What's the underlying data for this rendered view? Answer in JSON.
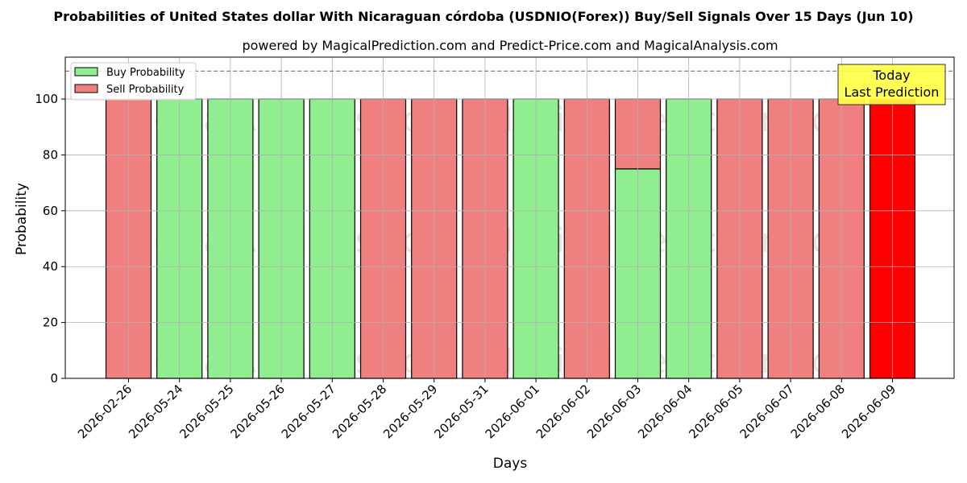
{
  "chart_data": {
    "type": "bar",
    "stacked": true,
    "title": "Probabilities of United States dollar With Nicaraguan córdoba (USDNIO(Forex)) Buy/Sell Signals Over 15 Days (Jun 10)",
    "subtitle": "powered by MagicalPrediction.com and Predict-Price.com and MagicalAnalysis.com",
    "xlabel": "Days",
    "ylabel": "Probability",
    "ylim": [
      0,
      115
    ],
    "yticks": [
      0,
      20,
      40,
      60,
      80,
      100
    ],
    "grid": true,
    "legend_position": "top-left",
    "reference_line": 110,
    "categories": [
      "2026-02-26",
      "2026-05-24",
      "2026-05-25",
      "2026-05-26",
      "2026-05-27",
      "2026-05-28",
      "2026-05-29",
      "2026-05-31",
      "2026-06-01",
      "2026-06-02",
      "2026-06-03",
      "2026-06-04",
      "2026-06-05",
      "2026-06-07",
      "2026-06-08",
      "2026-06-09"
    ],
    "series": [
      {
        "name": "Buy Probability",
        "color": "#90ee90",
        "values": [
          0,
          100,
          100,
          100,
          100,
          0,
          0,
          0,
          100,
          0,
          75,
          100,
          0,
          0,
          0,
          0
        ]
      },
      {
        "name": "Sell Probability",
        "color": "#f08080",
        "values": [
          100,
          0,
          0,
          0,
          0,
          100,
          100,
          100,
          0,
          100,
          25,
          0,
          100,
          100,
          100,
          100
        ]
      }
    ],
    "highlight": {
      "index": 15,
      "color": "#ff0000"
    },
    "annotation": {
      "line1": "Today",
      "line2": "Last Prediction",
      "color": "#ffff44"
    },
    "watermarks": [
      "MagicalAnalysis.com",
      "MagicalPrediction.com"
    ]
  }
}
